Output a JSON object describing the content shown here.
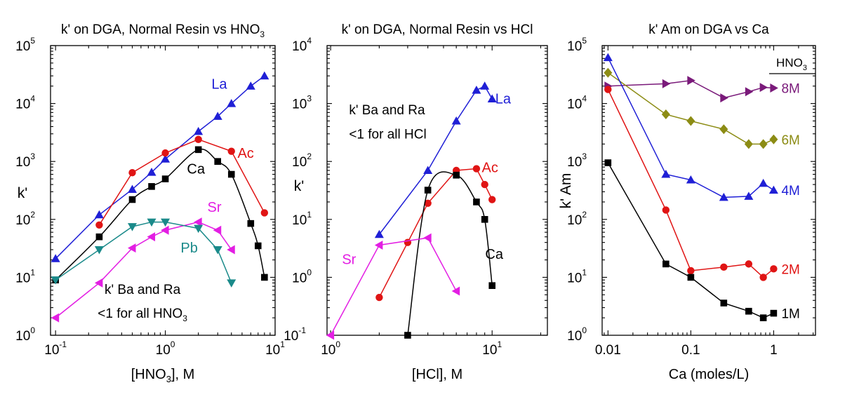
{
  "chart_data": [
    {
      "type": "line",
      "title": "k' on DGA, Normal Resin vs HNO",
      "title_sub": "3",
      "xlabel": "[HNO",
      "xlabel_sub": "3",
      "xlabel_tail": "], M",
      "ylabel": "k'",
      "xscale": "log",
      "yscale": "log",
      "xlim": [
        0.09,
        10
      ],
      "ylim": [
        1,
        100000
      ],
      "xticks": [
        {
          "v": 0.1,
          "label": "10",
          "exp": "-1"
        },
        {
          "v": 1,
          "label": "10",
          "exp": "0"
        },
        {
          "v": 10,
          "label": "10",
          "exp": "1"
        }
      ],
      "yticks": [
        {
          "v": 1,
          "label": "10",
          "exp": "0"
        },
        {
          "v": 10,
          "label": "10",
          "exp": "1"
        },
        {
          "v": 100,
          "label": "10",
          "exp": "2"
        },
        {
          "v": 1000,
          "label": "10",
          "exp": "3"
        },
        {
          "v": 10000,
          "label": "10",
          "exp": "4"
        },
        {
          "v": 100000,
          "label": "10",
          "exp": "5"
        }
      ],
      "series": [
        {
          "name": "La",
          "color": "#1f1fd6",
          "marker": "triangle-up",
          "x": [
            0.1,
            0.25,
            0.5,
            0.75,
            1.0,
            2.0,
            3.0,
            4.0,
            6.0,
            8.0
          ],
          "y": [
            21,
            120,
            330,
            650,
            1100,
            3300,
            6000,
            10000,
            20000,
            30000
          ]
        },
        {
          "name": "Ac",
          "color": "#e01414",
          "marker": "circle",
          "x": [
            0.25,
            0.5,
            1.0,
            2.0,
            4.0,
            8.0
          ],
          "y": [
            80,
            640,
            1400,
            2400,
            1500,
            130
          ]
        },
        {
          "name": "Ca",
          "color": "#000000",
          "marker": "square",
          "x": [
            0.1,
            0.25,
            0.5,
            0.75,
            1.0,
            2.0,
            3.0,
            4.0,
            6.0,
            7.0,
            8.0
          ],
          "y": [
            9,
            50,
            220,
            370,
            500,
            1600,
            1000,
            600,
            85,
            35,
            10
          ],
          "smooth": true
        },
        {
          "name": "Sr",
          "color": "#e31ee3",
          "marker": "triangle-left",
          "x": [
            0.1,
            0.25,
            0.5,
            0.75,
            1.0,
            2.0,
            3.0,
            4.0
          ],
          "y": [
            2,
            8,
            32,
            50,
            65,
            90,
            65,
            30
          ]
        },
        {
          "name": "Pb",
          "color": "#1a8a8a",
          "marker": "triangle-down",
          "x": [
            0.1,
            0.25,
            0.5,
            0.75,
            1.0,
            2.0,
            3.0,
            4.0
          ],
          "y": [
            9,
            30,
            75,
            90,
            90,
            70,
            30,
            8
          ]
        }
      ],
      "labels": [
        {
          "text": "La",
          "color": "#1f1fd6",
          "x": 3.1,
          "y": 18000
        },
        {
          "text": "Ac",
          "color": "#e01414",
          "x": 5.4,
          "y": 1150
        },
        {
          "text": "Ca",
          "color": "#000000",
          "x": 1.9,
          "y": 620
        },
        {
          "text": "Sr",
          "color": "#e31ee3",
          "x": 2.8,
          "y": 135
        },
        {
          "text": "Pb",
          "color": "#1a8a8a",
          "x": 1.65,
          "y": 27
        }
      ],
      "annotation": {
        "line1": "k' Ba and Ra",
        "line2": "<1 for all HNO",
        "line2_sub": "3",
        "x": 0.62,
        "y1": 5.2,
        "y2": 2.0
      }
    },
    {
      "type": "line",
      "title": "k' on DGA, Normal Resin vs HCl",
      "xlabel": "[HCl], M",
      "ylabel": "k'",
      "xscale": "log",
      "yscale": "log",
      "xlim": [
        0.95,
        22
      ],
      "ylim": [
        0.1,
        10000
      ],
      "xticks": [
        {
          "v": 1,
          "label": "10",
          "exp": "0"
        },
        {
          "v": 10,
          "label": "10",
          "exp": "1"
        }
      ],
      "yticks": [
        {
          "v": 0.1,
          "label": "10",
          "exp": "-1"
        },
        {
          "v": 1,
          "label": "10",
          "exp": "0"
        },
        {
          "v": 10,
          "label": "10",
          "exp": "1"
        },
        {
          "v": 100,
          "label": "10",
          "exp": "2"
        },
        {
          "v": 1000,
          "label": "10",
          "exp": "3"
        },
        {
          "v": 10000,
          "label": "10",
          "exp": "4"
        }
      ],
      "series": [
        {
          "name": "La",
          "color": "#1f1fd6",
          "marker": "triangle-up",
          "x": [
            2,
            4,
            6,
            8,
            9,
            10
          ],
          "y": [
            5.5,
            70,
            500,
            1700,
            2000,
            1200
          ]
        },
        {
          "name": "Ac",
          "color": "#e01414",
          "marker": "circle",
          "x": [
            2,
            3,
            4,
            6,
            8,
            9,
            10
          ],
          "y": [
            0.45,
            4,
            19,
            70,
            75,
            40,
            22
          ]
        },
        {
          "name": "Ca",
          "color": "#000000",
          "marker": "square",
          "x": [
            3,
            4,
            6,
            8,
            9,
            10
          ],
          "y": [
            0.1,
            32,
            58,
            20,
            10,
            0.72
          ],
          "smooth": true
        },
        {
          "name": "Sr",
          "color": "#e31ee3",
          "marker": "triangle-left",
          "x": [
            1,
            2,
            4,
            6
          ],
          "y": [
            0.1,
            3.6,
            4.8,
            0.58
          ]
        }
      ],
      "labels": [
        {
          "text": "La",
          "color": "#1f1fd6",
          "x": 11.7,
          "y": 1000
        },
        {
          "text": "Ac",
          "color": "#e01414",
          "x": 9.7,
          "y": 65
        },
        {
          "text": "Ca",
          "color": "#000000",
          "x": 10.3,
          "y": 2.1
        },
        {
          "text": "Sr",
          "color": "#e31ee3",
          "x": 1.3,
          "y": 1.7
        }
      ],
      "annotation": {
        "line1": "k' Ba and Ra",
        "line2": "<1 for all HCl",
        "x": 1.3,
        "y1": 650,
        "y2": 250
      }
    },
    {
      "type": "line",
      "title": "k' Am on DGA vs Ca",
      "xlabel": "Ca (moles/L)",
      "ylabel": "k' Am",
      "xscale": "log",
      "yscale": "log",
      "xlim": [
        0.0085,
        3.2
      ],
      "ylim": [
        1,
        100000
      ],
      "xticks": [
        {
          "v": 0.01,
          "label": "0.01"
        },
        {
          "v": 0.1,
          "label": "0.1"
        },
        {
          "v": 1,
          "label": "1"
        }
      ],
      "yticks": [
        {
          "v": 1,
          "label": "10",
          "exp": "0"
        },
        {
          "v": 10,
          "label": "10",
          "exp": "1"
        },
        {
          "v": 100,
          "label": "10",
          "exp": "2"
        },
        {
          "v": 1000,
          "label": "10",
          "exp": "3"
        },
        {
          "v": 10000,
          "label": "10",
          "exp": "4"
        },
        {
          "v": 100000,
          "label": "10",
          "exp": "5"
        }
      ],
      "legend_title": "HNO",
      "legend_title_sub": "3",
      "series": [
        {
          "name": "8M",
          "color": "#7a1a7a",
          "marker": "triangle-right",
          "x": [
            0.01,
            0.05,
            0.1,
            0.25,
            0.5,
            0.75,
            1.0
          ],
          "y": [
            20000,
            22000,
            25000,
            12500,
            16000,
            19000,
            18500
          ]
        },
        {
          "name": "6M",
          "color": "#8c8c14",
          "marker": "diamond",
          "x": [
            0.01,
            0.05,
            0.1,
            0.25,
            0.5,
            0.75,
            1.0
          ],
          "y": [
            34000,
            6500,
            5000,
            3600,
            2000,
            2000,
            2400
          ]
        },
        {
          "name": "4M",
          "color": "#1f1fd6",
          "marker": "triangle-up",
          "x": [
            0.01,
            0.05,
            0.1,
            0.25,
            0.5,
            0.75,
            1.0
          ],
          "y": [
            62000,
            600,
            480,
            240,
            250,
            420,
            320
          ]
        },
        {
          "name": "2M",
          "color": "#e01414",
          "marker": "circle",
          "x": [
            0.01,
            0.05,
            0.1,
            0.25,
            0.5,
            0.75,
            1.0
          ],
          "y": [
            17500,
            145,
            13,
            15,
            17,
            10,
            14
          ]
        },
        {
          "name": "1M",
          "color": "#000000",
          "marker": "square",
          "x": [
            0.01,
            0.05,
            0.1,
            0.25,
            0.5,
            0.75,
            1.0
          ],
          "y": [
            950,
            17,
            10,
            3.6,
            2.6,
            2.0,
            2.4
          ]
        }
      ]
    }
  ]
}
